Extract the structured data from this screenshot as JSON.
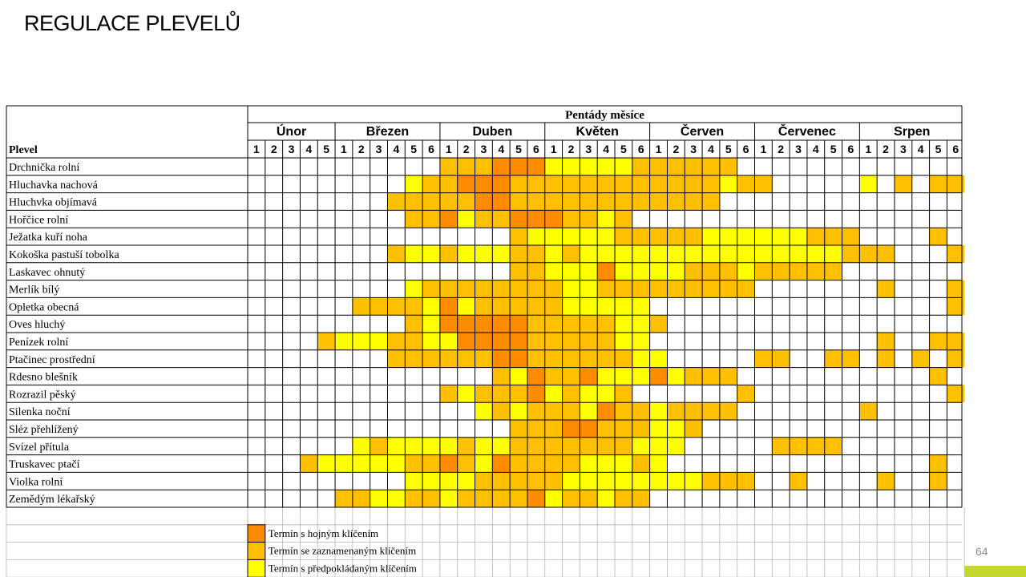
{
  "slide": {
    "title": "REGULACE PLEVELŮ",
    "page_number": "64"
  },
  "colors": {
    "abundant": "#FF8C00",
    "recorded": "#FFC000",
    "presumed": "#FFFF00",
    "grid_border": "#000000",
    "grid_light": "#B5B5B5",
    "accent": "#C3D82B"
  },
  "chart_data": {
    "type": "heatmap",
    "title": "Pentády měsíce",
    "row_header": "Plevel",
    "months": [
      {
        "name": "Únor",
        "pentads": 5
      },
      {
        "name": "Březen",
        "pentads": 6
      },
      {
        "name": "Duben",
        "pentads": 6
      },
      {
        "name": "Květen",
        "pentads": 6
      },
      {
        "name": "Červen",
        "pentads": 6
      },
      {
        "name": "Červenec",
        "pentads": 6
      },
      {
        "name": "Srpen",
        "pentads": 6
      }
    ],
    "legend": [
      {
        "code": "3",
        "label": "Termín s hojným klíčením"
      },
      {
        "code": "2",
        "label": "Termín se zaznamenaným klíčením"
      },
      {
        "code": "1",
        "label": "Termín s předpokládaným klíčením"
      }
    ],
    "cell_codes": {
      "0": "none",
      "1": "presumed",
      "2": "recorded",
      "3": "abundant"
    },
    "rows": [
      {
        "name": "Drchnička rolní",
        "cells": "00000000000222333111112222220000000000000"
      },
      {
        "name": "Hluchavka nachová",
        "cells": "00000000012233322222222222212200000102022"
      },
      {
        "name": "Hluchvka objímavá",
        "cells": "00000000222223322222222222200000000000000"
      },
      {
        "name": "Hořčice rolní",
        "cells": "00000000022312233322120000000000000000000"
      },
      {
        "name": "Ježatka kuří noha",
        "cells": "00000000000000021111122222111111222000020"
      },
      {
        "name": "Kokoška pastuší tobolka",
        "cells": "00000000211211122121111111111111112220002"
      },
      {
        "name": "Laskavec ohnutý",
        "cells": "00000000000000022111311112221222220000000"
      },
      {
        "name": "Merlík bílý",
        "cells": "00000000012222222211222222222000000020002"
      },
      {
        "name": "Opletka obecná",
        "cells": "00000022221312222211111000000000000000002"
      },
      {
        "name": "Oves hluchý",
        "cells": "00000000021333332222211200000000000000000"
      },
      {
        "name": "Penízek rolní",
        "cells": "00002111221133332222211000000000000020022"
      },
      {
        "name": "Ptačinec prostřední",
        "cells": "00000000222222332222221100000220022020202"
      },
      {
        "name": "Rdesno blešník",
        "cells": "00000000000000213223111312220000000000020"
      },
      {
        "name": "Rozrazil pěský",
        "cells": "00000000000212223121120000002000000000002"
      },
      {
        "name": "Silenka noční",
        "cells": "00000000000001212221322122220000000200000"
      },
      {
        "name": "Sléz přehlížený",
        "cells": "00000000000000022233222112000000000000000"
      },
      {
        "name": "Svízel přítula",
        "cells": "00000012111121122222221110000022220000000"
      },
      {
        "name": "Truskavec ptačí",
        "cells": "00021111122321322221112100000000000000020"
      },
      {
        "name": "Violka rolní",
        "cells": "00000000011112222211111111222002000020020"
      },
      {
        "name": "Zemědým lékařský",
        "cells": "00000221122122223122122000000000000000000"
      }
    ]
  }
}
